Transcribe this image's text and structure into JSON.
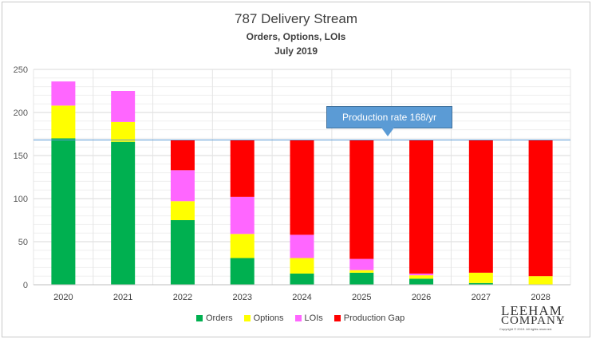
{
  "chart_data": {
    "type": "bar",
    "stacked": true,
    "title": "787 Delivery Stream",
    "subtitle_line1": "Orders, Options, LOIs",
    "subtitle_line2": "July 2019",
    "xlabel": "",
    "ylabel": "",
    "ylim": [
      0,
      250
    ],
    "yticks": [
      "0",
      "50",
      "100",
      "150",
      "200",
      "250"
    ],
    "categories": [
      "2020",
      "2021",
      "2022",
      "2023",
      "2024",
      "2025",
      "2026",
      "2027",
      "2028"
    ],
    "series": [
      {
        "name": "Orders",
        "color": "#00b050",
        "values": [
          170,
          166,
          75,
          31,
          13,
          14,
          7,
          2,
          0
        ]
      },
      {
        "name": "Options",
        "color": "#ffff00",
        "values": [
          38,
          23,
          22,
          28,
          18,
          3,
          4,
          12,
          10
        ]
      },
      {
        "name": "LOIs",
        "color": "#ff66ff",
        "values": [
          28,
          36,
          36,
          43,
          27,
          13,
          2,
          0,
          0
        ]
      },
      {
        "name": "Production Gap",
        "color": "#ff0000",
        "values": [
          0,
          0,
          35,
          66,
          110,
          138,
          155,
          154,
          158
        ]
      }
    ],
    "reference_line": {
      "value": 168,
      "color": "#5b9bd5",
      "annotation": "Production rate 168/yr"
    },
    "grid": true,
    "legend_position": "bottom"
  },
  "logo": {
    "line1": "LEEHAM",
    "line2": "COMPANY",
    "suffix": "LLC",
    "copyright": "Copyright © 2019. All rights reserved."
  }
}
